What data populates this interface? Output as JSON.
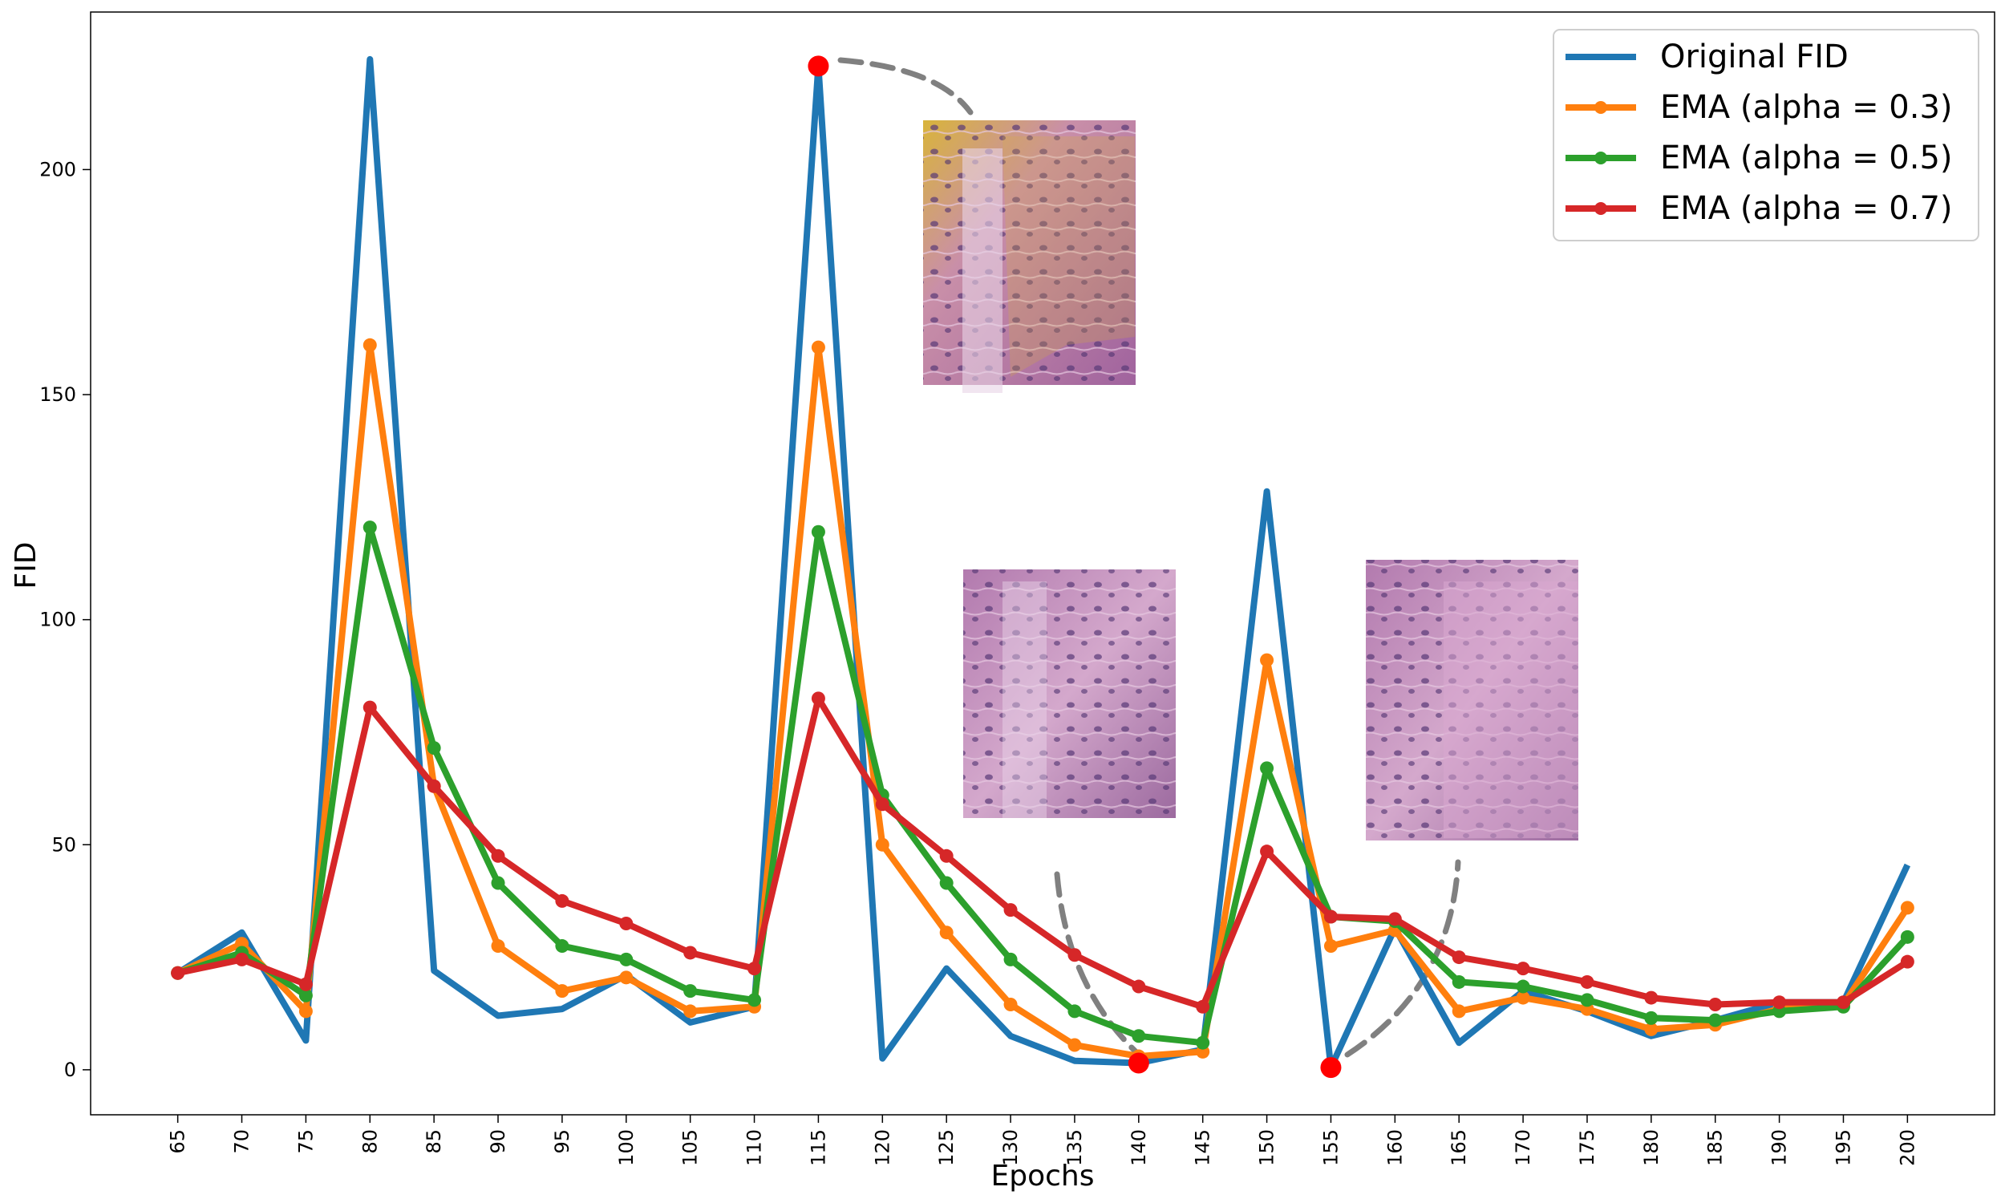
{
  "chart_data": {
    "type": "line",
    "title": "",
    "xlabel": "Epochs",
    "ylabel": "FID",
    "x": [
      65,
      70,
      75,
      80,
      85,
      90,
      95,
      100,
      105,
      110,
      115,
      120,
      125,
      130,
      135,
      140,
      145,
      150,
      155,
      160,
      165,
      170,
      175,
      180,
      185,
      190,
      195,
      200
    ],
    "yticks": [
      0,
      50,
      100,
      150,
      200
    ],
    "ylim": [
      -10,
      235
    ],
    "xlim": [
      58.2,
      206.8
    ],
    "grid": false,
    "legend_position": "top-right",
    "series": [
      {
        "name": "Original FID",
        "color": "#1f77b4",
        "marker": false,
        "values": [
          21.5,
          30.5,
          6.5,
          224.5,
          22,
          12,
          13.5,
          21,
          10.5,
          14,
          223,
          2.5,
          22.5,
          7.5,
          2,
          1.5,
          4.5,
          128.5,
          0.5,
          31.5,
          6,
          17.5,
          13,
          7.5,
          11,
          15,
          15,
          45.5
        ]
      },
      {
        "name": "EMA (alpha = 0.3)",
        "color": "#ff7f0e",
        "marker": true,
        "values": [
          21.5,
          28,
          13,
          161,
          63,
          27.5,
          17.5,
          20.5,
          13,
          14,
          160.5,
          50,
          30.5,
          14.5,
          5.5,
          3,
          4,
          91,
          27.5,
          31,
          13,
          16,
          13.5,
          9,
          10,
          13.5,
          14.5,
          36
        ]
      },
      {
        "name": "EMA (alpha = 0.5)",
        "color": "#2ca02c",
        "marker": true,
        "values": [
          21.5,
          26,
          16.5,
          120.5,
          71.5,
          41.5,
          27.5,
          24.5,
          17.5,
          15.5,
          119.5,
          61,
          41.5,
          24.5,
          13,
          7.5,
          6,
          67,
          34,
          33,
          19.5,
          18.5,
          15.5,
          11.5,
          11,
          13,
          14,
          29.5
        ]
      },
      {
        "name": "EMA (alpha = 0.7)",
        "color": "#d62728",
        "marker": true,
        "values": [
          21.5,
          24.5,
          19,
          80.5,
          63,
          47.5,
          37.5,
          32.5,
          26,
          22.5,
          82.5,
          59,
          47.5,
          35.5,
          25.5,
          18.5,
          14,
          48.5,
          34,
          33.5,
          25,
          22.5,
          19.5,
          16,
          14.5,
          15,
          15,
          24
        ]
      }
    ],
    "highlights": [
      {
        "x": 115,
        "y": 223,
        "color": "#ff0000"
      },
      {
        "x": 140,
        "y": 1.5,
        "color": "#ff0000"
      },
      {
        "x": 155,
        "y": 0.5,
        "color": "#ff0000"
      }
    ]
  }
}
